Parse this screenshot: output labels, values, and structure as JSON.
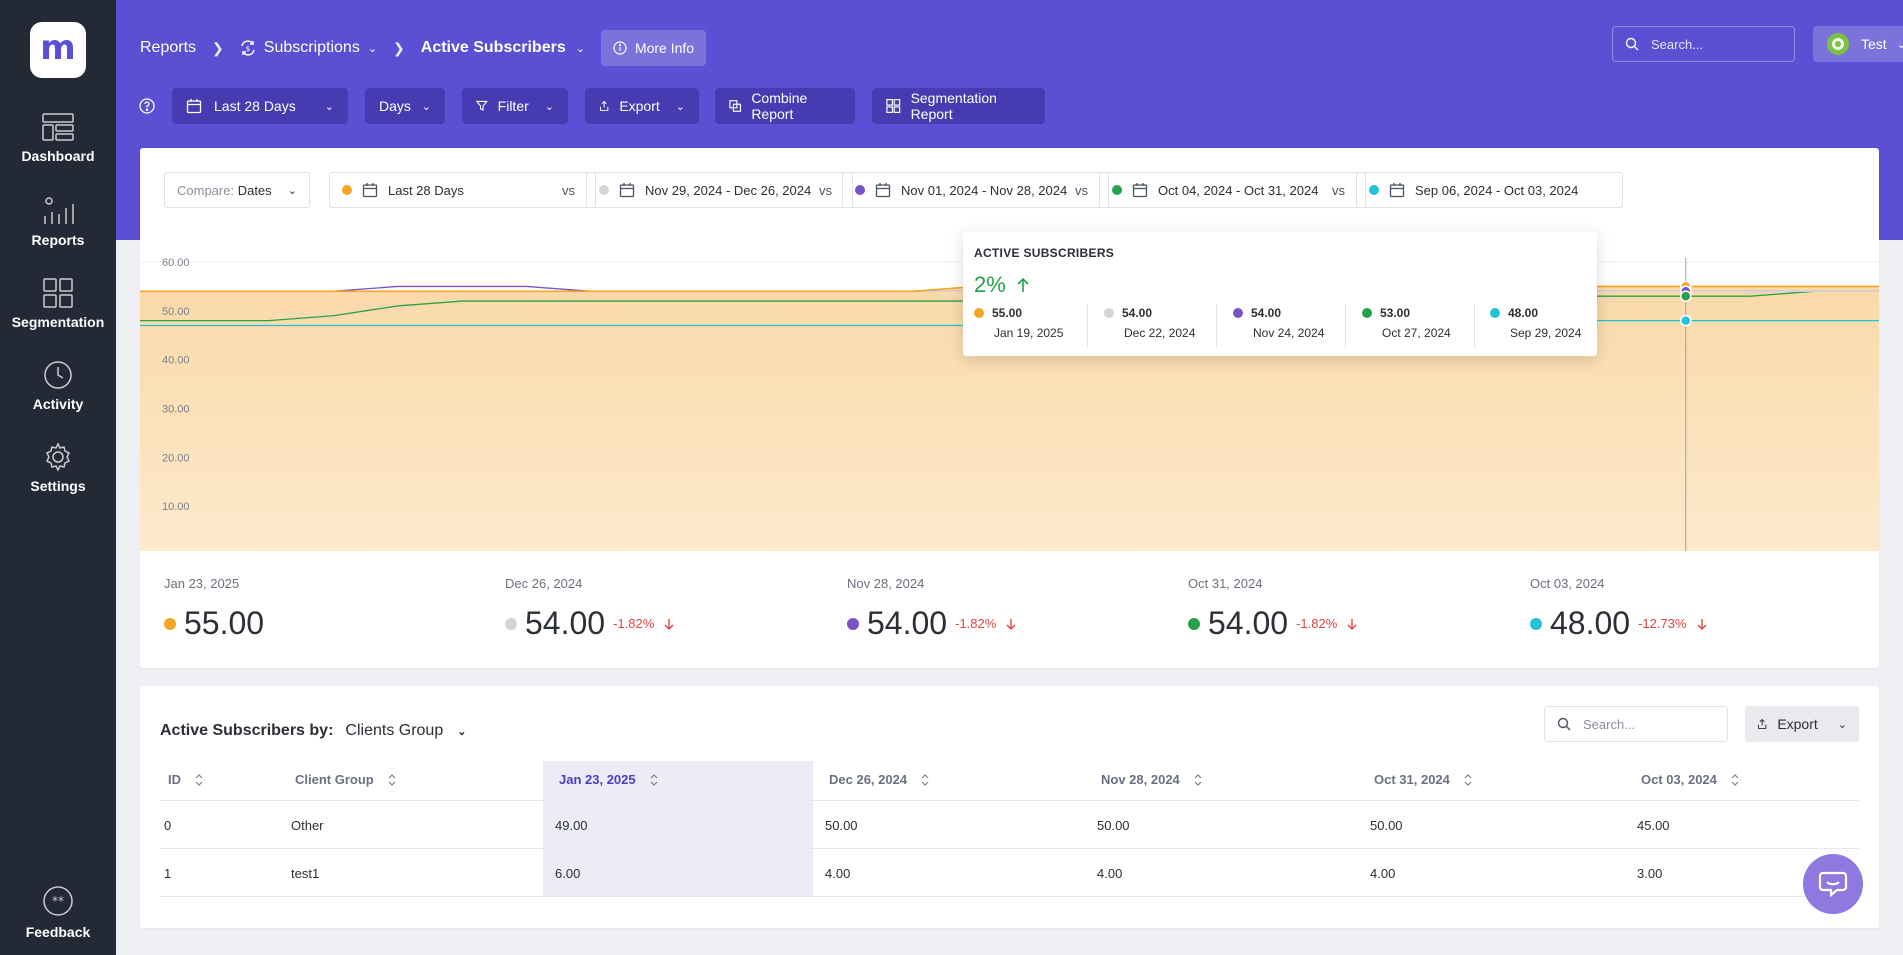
{
  "sidebar": {
    "logo": "m",
    "items": [
      {
        "label": "Dashboard",
        "icon": "dashboard-icon"
      },
      {
        "label": "Reports",
        "icon": "reports-icon"
      },
      {
        "label": "Segmentation",
        "icon": "segmentation-icon"
      },
      {
        "label": "Activity",
        "icon": "activity-icon"
      },
      {
        "label": "Settings",
        "icon": "gear-icon"
      }
    ],
    "feedback": "Feedback"
  },
  "header": {
    "breadcrumbs": [
      "Reports",
      "Subscriptions",
      "Active Subscribers"
    ],
    "more_info": "More Info",
    "search_placeholder": "Search...",
    "account": "Test",
    "avatar": "T T",
    "toolbar": {
      "date_range": "Last 28 Days",
      "granularity": "Days",
      "filter": "Filter",
      "export": "Export",
      "combine": "Combine Report",
      "segmentation": "Segmentation Report"
    }
  },
  "compare": {
    "label": "Compare:",
    "mode": "Dates",
    "vs": "vs",
    "ranges": [
      {
        "label": "Last 28 Days",
        "color": "#f5a623"
      },
      {
        "label": "Nov 29, 2024 - Dec 26, 2024",
        "color": "#d3d5d9"
      },
      {
        "label": "Nov 01, 2024 - Nov 28, 2024",
        "color": "#7a52c7"
      },
      {
        "label": "Oct 04, 2024 - Oct 31, 2024",
        "color": "#27a149"
      },
      {
        "label": "Sep 06, 2024 - Oct 03, 2024",
        "color": "#22c1d6"
      }
    ]
  },
  "chart_data": {
    "type": "area",
    "y_ticks": [
      "60.00",
      "50.00",
      "40.00",
      "30.00",
      "20.00",
      "10.00"
    ],
    "ylim": [
      0,
      60
    ],
    "grid": true,
    "series": [
      {
        "color": "#f5a623",
        "values": [
          54,
          54,
          54,
          54,
          54,
          54,
          54,
          54,
          54,
          54,
          54,
          54,
          54,
          55,
          56,
          55,
          55,
          55,
          55,
          55,
          55,
          55,
          55,
          55,
          55,
          55,
          55,
          55
        ]
      },
      {
        "color": "#d3d5d9",
        "values": [
          54,
          54,
          54,
          54,
          54,
          54,
          54,
          54,
          54,
          54,
          54,
          54,
          54,
          54,
          54,
          54,
          54,
          54,
          54,
          54,
          54,
          54,
          54,
          54,
          54,
          54,
          54,
          54
        ]
      },
      {
        "color": "#7a52c7",
        "values": [
          54,
          54,
          54,
          54,
          55,
          55,
          55,
          54,
          54,
          54,
          54,
          54,
          54,
          54,
          54,
          54,
          54,
          54,
          54,
          54,
          54,
          54,
          54,
          54,
          54,
          54,
          54,
          54
        ]
      },
      {
        "color": "#27a149",
        "values": [
          48,
          48,
          48,
          49,
          51,
          52,
          52,
          52,
          52,
          52,
          52,
          52,
          52,
          52,
          52,
          52,
          53,
          53,
          53,
          53,
          53,
          53,
          53,
          53,
          53,
          53,
          54,
          54
        ]
      },
      {
        "color": "#22c1d6",
        "values": [
          47,
          47,
          47,
          47,
          47,
          47,
          47,
          47,
          47,
          47,
          47,
          47,
          47,
          47,
          47,
          47,
          48,
          48,
          48,
          48,
          48,
          48,
          48,
          48,
          48,
          48,
          48,
          48
        ]
      }
    ],
    "hover_index": 24
  },
  "tooltip": {
    "title": "ACTIVE SUBSCRIBERS",
    "change": "2%",
    "items": [
      {
        "value": "55.00",
        "date": "Jan 19, 2025",
        "color": "#f5a623"
      },
      {
        "value": "54.00",
        "date": "Dec 22, 2024",
        "color": "#d3d5d9"
      },
      {
        "value": "54.00",
        "date": "Nov 24, 2024",
        "color": "#7a52c7"
      },
      {
        "value": "53.00",
        "date": "Oct 27, 2024",
        "color": "#27a149"
      },
      {
        "value": "48.00",
        "date": "Sep 29, 2024",
        "color": "#22c1d6"
      }
    ]
  },
  "stats": [
    {
      "date": "Jan 23, 2025",
      "value": "55.00",
      "change": "",
      "color": "#f5a623"
    },
    {
      "date": "Dec 26, 2024",
      "value": "54.00",
      "change": "-1.82%",
      "color": "#d3d5d9"
    },
    {
      "date": "Nov 28, 2024",
      "value": "54.00",
      "change": "-1.82%",
      "color": "#7a52c7"
    },
    {
      "date": "Oct 31, 2024",
      "value": "54.00",
      "change": "-1.82%",
      "color": "#27a149"
    },
    {
      "date": "Oct 03, 2024",
      "value": "48.00",
      "change": "-12.73%",
      "color": "#22c1d6"
    }
  ],
  "table": {
    "title": "Active Subscribers by:",
    "group": "Clients Group",
    "search_placeholder": "Search...",
    "export": "Export",
    "columns": [
      "ID",
      "Client Group",
      "Jan 23, 2025",
      "Dec 26, 2024",
      "Nov 28, 2024",
      "Oct 31, 2024",
      "Oct 03, 2024"
    ],
    "rows": [
      [
        "0",
        "Other",
        "49.00",
        "50.00",
        "50.00",
        "50.00",
        "45.00"
      ],
      [
        "1",
        "test1",
        "6.00",
        "4.00",
        "4.00",
        "4.00",
        "3.00"
      ]
    ]
  }
}
